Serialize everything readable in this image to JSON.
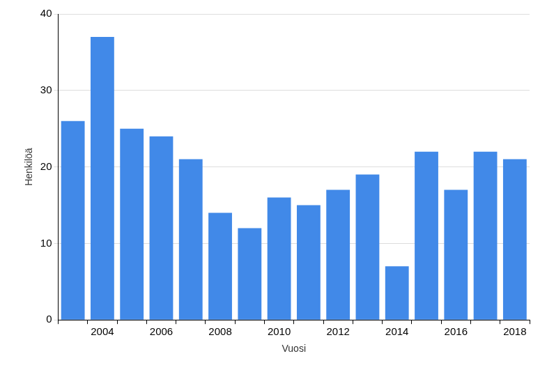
{
  "chart_data": {
    "type": "bar",
    "x_label": "Vuosi",
    "y_label": "Henkilöä",
    "categories": [
      null,
      "2004",
      null,
      "2006",
      null,
      "2008",
      null,
      "2010",
      null,
      "2012",
      null,
      "2014",
      null,
      "2016",
      null,
      "2018"
    ],
    "values": [
      26,
      37,
      25,
      24,
      21,
      14,
      12,
      16,
      15,
      17,
      19,
      7,
      22,
      17,
      22,
      21
    ],
    "color": "#4189e8",
    "ylim": [
      0,
      40
    ],
    "yticks": [
      0,
      10,
      20,
      30,
      40
    ],
    "grid": true
  }
}
